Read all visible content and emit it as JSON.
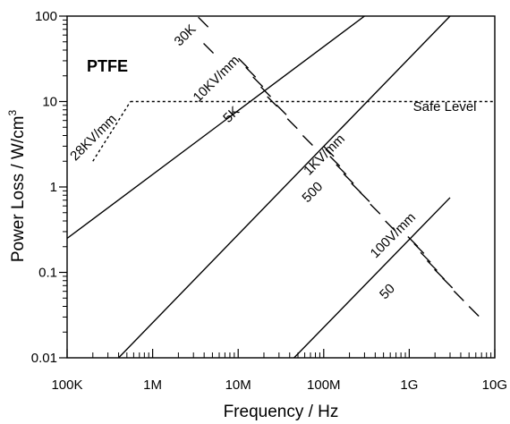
{
  "chart_data": {
    "type": "line",
    "title": "",
    "xlabel": "Frequency /   Hz",
    "ylabel_main": "Power Loss /   W/cm",
    "ylabel_sup": "3",
    "x_scale": "log",
    "y_scale": "log",
    "xlim": [
      100000,
      10000000000
    ],
    "ylim": [
      0.01,
      100
    ],
    "grid": false,
    "legend": "none",
    "x_ticks": [
      {
        "value": 100000,
        "label": "100K"
      },
      {
        "value": 1000000,
        "label": "1M"
      },
      {
        "value": 10000000,
        "label": "10M"
      },
      {
        "value": 100000000,
        "label": "100M"
      },
      {
        "value": 1000000000,
        "label": "1G"
      },
      {
        "value": 10000000000,
        "label": "10G"
      }
    ],
    "y_ticks": [
      {
        "value": 0.01,
        "label": "0.01"
      },
      {
        "value": 0.1,
        "label": "0.1"
      },
      {
        "value": 1,
        "label": "1"
      },
      {
        "value": 10,
        "label": "10"
      },
      {
        "value": 100,
        "label": "100"
      }
    ],
    "material_label": "PTFE",
    "series": [
      {
        "name": "10KV/mm",
        "style": "solid",
        "x": [
          100000,
          300000000
        ],
        "y": [
          0.25,
          100
        ]
      },
      {
        "name": "1KV/mm",
        "style": "solid",
        "x": [
          400000,
          3000000000
        ],
        "y": [
          0.01,
          100
        ]
      },
      {
        "name": "100V/mm",
        "style": "solid",
        "x": [
          45000000,
          3000000000
        ],
        "y": [
          0.01,
          0.75
        ]
      },
      {
        "name": "28KV/mm",
        "style": "dotted",
        "x": [
          200000,
          550000
        ],
        "y": [
          2,
          10
        ]
      }
    ],
    "safe_level": {
      "label": "Safe Level",
      "style": "dotted",
      "x": [
        550000,
        10000000000
      ],
      "y": 10
    },
    "dash_groups": [
      {
        "label": "30K",
        "ticks": [
          [
            3900000,
            85
          ],
          [
            4500000,
            42
          ]
        ]
      },
      {
        "label": "5K",
        "ticks": [
          [
            11500000,
            28
          ],
          [
            14000000,
            22
          ],
          [
            17000000,
            17
          ],
          [
            21000000,
            13
          ],
          [
            25000000,
            10
          ],
          [
            32000000,
            8
          ],
          [
            43000000,
            5.5
          ],
          [
            65000000,
            3.5
          ]
        ]
      },
      {
        "label": "500",
        "ticks": [
          [
            115000000,
            2.6
          ],
          [
            135000000,
            2.0
          ],
          [
            160000000,
            1.6
          ],
          [
            195000000,
            1.25
          ],
          [
            240000000,
            0.97
          ],
          [
            300000000,
            0.77
          ],
          [
            400000000,
            0.55
          ],
          [
            600000000,
            0.35
          ]
        ]
      },
      {
        "label": "50",
        "ticks": [
          [
            1100000000,
            0.23
          ],
          [
            1300000000,
            0.19
          ],
          [
            1550000000,
            0.15
          ],
          [
            1850000000,
            0.12
          ],
          [
            2250000000,
            0.095
          ],
          [
            2800000000,
            0.075
          ],
          [
            3800000000,
            0.053
          ],
          [
            5700000000,
            0.035
          ]
        ]
      }
    ],
    "annotations": [
      {
        "text": "30K",
        "x": 2600000,
        "y": 55,
        "angle": -45
      },
      {
        "text": "10KV/mm",
        "x": 6000000,
        "y": 17,
        "angle": -45
      },
      {
        "text": "5K",
        "x": 9000000,
        "y": 6.5,
        "angle": -45
      },
      {
        "text": "28KV/mm",
        "x": 220000,
        "y": 3.5,
        "angle": -45
      },
      {
        "text": "1KV/mm",
        "x": 110000000,
        "y": 2.2,
        "angle": -45
      },
      {
        "text": "500",
        "x": 80000000,
        "y": 0.8,
        "angle": -45
      },
      {
        "text": "100V/mm",
        "x": 700000000,
        "y": 0.25,
        "angle": -45
      },
      {
        "text": "50",
        "x": 600000000,
        "y": 0.055,
        "angle": -45
      },
      {
        "text": "Safe Level",
        "x": 2600000000,
        "y": 7.8,
        "angle": 0
      }
    ]
  }
}
